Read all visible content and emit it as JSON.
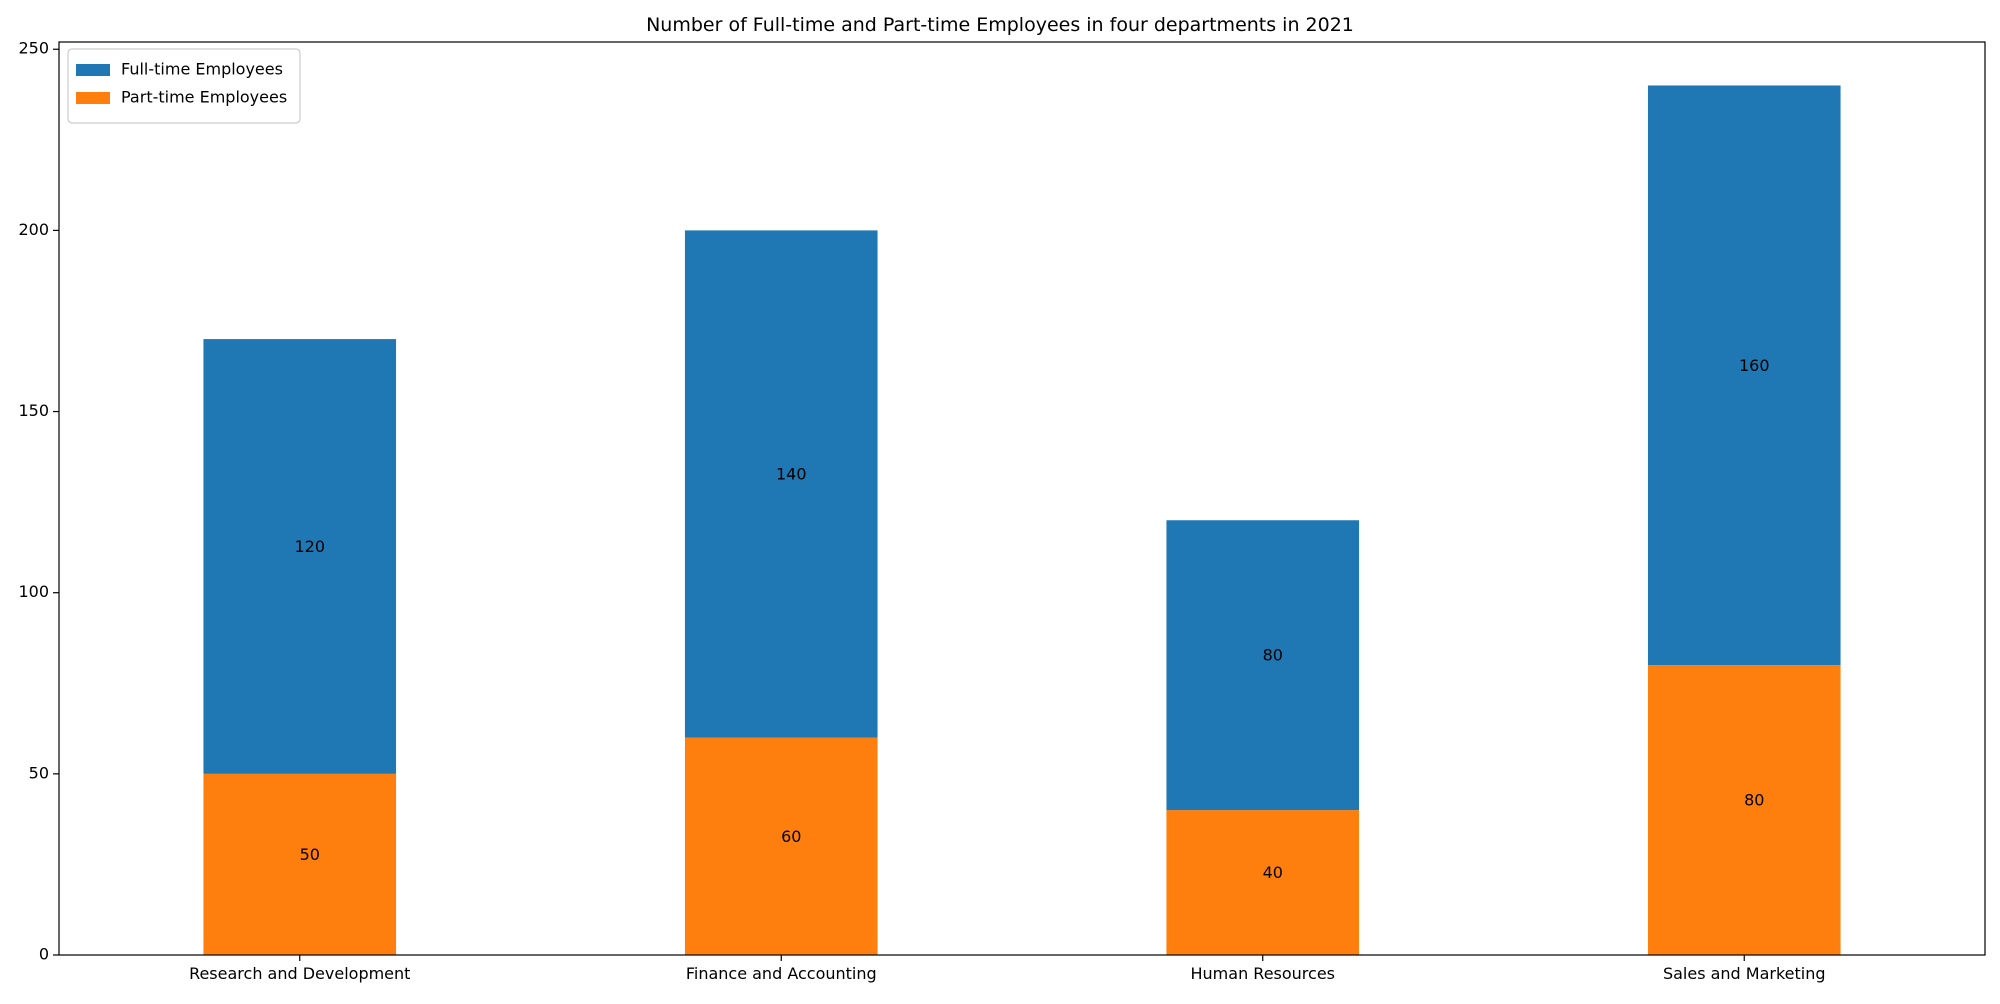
{
  "chart_data": {
    "type": "bar",
    "stacked": true,
    "title": "Number of Full-time and Part-time Employees in four departments in 2021",
    "xlabel": "",
    "ylabel": "",
    "categories": [
      "Research and Development",
      "Finance and Accounting",
      "Human Resources",
      "Sales and Marketing"
    ],
    "series": [
      {
        "name": "Part-time Employees",
        "values": [
          50,
          60,
          40,
          80
        ],
        "color": "#ff7f0e"
      },
      {
        "name": "Full-time Employees",
        "values": [
          120,
          140,
          80,
          160
        ],
        "color": "#1f77b4"
      }
    ],
    "ylim": [
      0,
      252
    ],
    "yticks": [
      0,
      50,
      100,
      150,
      200,
      250
    ],
    "grid": false,
    "legend": {
      "position": "top-left",
      "entries": [
        {
          "label": "Full-time Employees",
          "color": "#1f77b4"
        },
        {
          "label": "Part-time Employees",
          "color": "#ff7f0e"
        }
      ]
    }
  }
}
